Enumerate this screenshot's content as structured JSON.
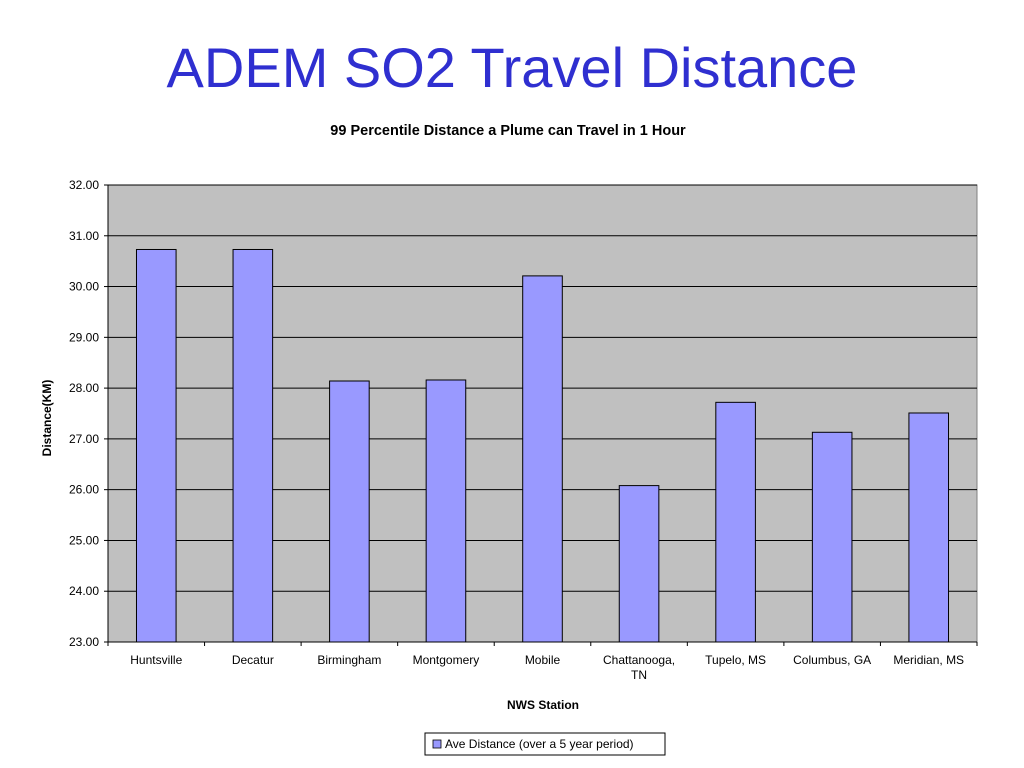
{
  "slide": {
    "title": "ADEM SO2 Travel Distance"
  },
  "colors": {
    "title": "#2f2fd0",
    "plot_background": "#c0c0c0",
    "bar_fill": "#9999ff",
    "bar_stroke": "#000000",
    "gridline": "#000000"
  },
  "chart_data": {
    "type": "bar",
    "title": "99 Percentile Distance a Plume can Travel in 1 Hour",
    "xlabel": "NWS Station",
    "ylabel": "Distance(KM)",
    "categories": [
      "Huntsville",
      "Decatur",
      "Birmingham",
      "Montgomery",
      "Mobile",
      "Chattanooga, TN",
      "Tupelo, MS",
      "Columbus, GA",
      "Meridian, MS"
    ],
    "category_lines": [
      [
        "Huntsville"
      ],
      [
        "Decatur"
      ],
      [
        "Birmingham"
      ],
      [
        "Montgomery"
      ],
      [
        "Mobile"
      ],
      [
        "Chattanooga,",
        "TN"
      ],
      [
        "Tupelo, MS"
      ],
      [
        "Columbus, GA"
      ],
      [
        "Meridian, MS"
      ]
    ],
    "series": [
      {
        "name": "Ave Distance (over a 5 year period)",
        "values": [
          30.73,
          30.73,
          28.14,
          28.16,
          30.21,
          26.08,
          27.72,
          27.13,
          27.51
        ]
      }
    ],
    "ylim": [
      23,
      32
    ],
    "yticks": [
      "23.00",
      "24.00",
      "25.00",
      "26.00",
      "27.00",
      "28.00",
      "29.00",
      "30.00",
      "31.00",
      "32.00"
    ],
    "grid": true,
    "legend_position": "bottom"
  }
}
